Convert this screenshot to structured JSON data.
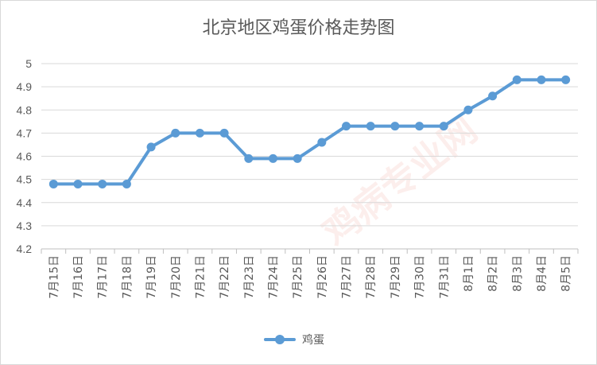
{
  "chart_data": {
    "type": "line",
    "title": "北京地区鸡蛋价格走势图",
    "categories": [
      "7月15日",
      "7月16日",
      "7月17日",
      "7月18日",
      "7月19日",
      "7月20日",
      "7月21日",
      "7月22日",
      "7月23日",
      "7月24日",
      "7月25日",
      "7月26日",
      "7月27日",
      "7月28日",
      "7月29日",
      "7月30日",
      "7月31日",
      "8月1日",
      "8月2日",
      "8月3日",
      "8月4日",
      "8月5日"
    ],
    "series": [
      {
        "name": "鸡蛋",
        "color": "#5b9bd5",
        "values": [
          4.48,
          4.48,
          4.48,
          4.48,
          4.64,
          4.7,
          4.7,
          4.7,
          4.59,
          4.59,
          4.59,
          4.66,
          4.73,
          4.73,
          4.73,
          4.73,
          4.73,
          4.8,
          4.86,
          4.93,
          4.93,
          4.93
        ]
      }
    ],
    "ylim": [
      4.2,
      5
    ],
    "yticks": [
      "4.2",
      "4.3",
      "4.4",
      "4.5",
      "4.6",
      "4.7",
      "4.8",
      "4.9",
      "5"
    ],
    "grid": "horizontal",
    "legend_position": "bottom",
    "watermark": "鸡病专业网"
  }
}
